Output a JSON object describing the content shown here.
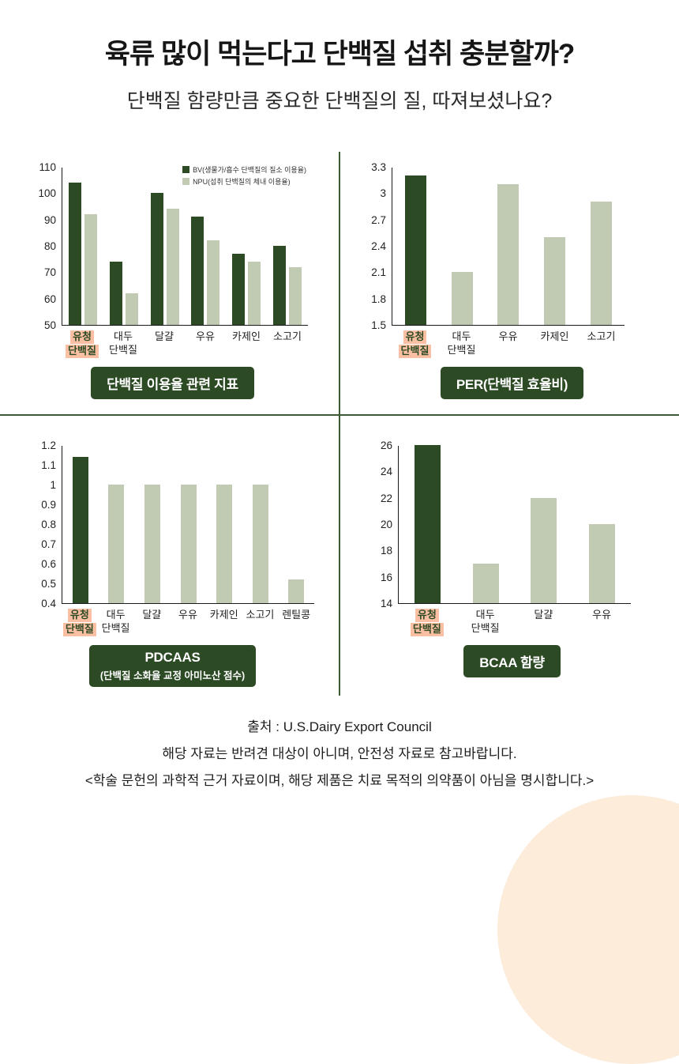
{
  "page": {
    "title": "육류 많이 먹는다고 단백질 섭취 충분할까?",
    "subtitle": "단백질 함량만큼 중요한 단백질의 질, 따져보셨나요?"
  },
  "colors": {
    "dark_green": "#2c4a24",
    "light_green": "#c1cbb3",
    "highlight_pink": "#fbbfa3",
    "divider_green": "#3d5b33",
    "corner_cream": "#fcecd9"
  },
  "footer": {
    "lines": [
      "출처 : U.S.Dairy Export Council",
      "해당 자료는 반려견 대상이 아니며, 안전성 자료로 참고바랍니다.",
      "<학술 문헌의 과학적 근거 자료이며, 해당 제품은 치료 목적의 의약품이 아님을 명시합니다.>"
    ]
  },
  "chart_data": [
    {
      "type": "bar",
      "title": "단백질 이용율 관련 지표",
      "ylim": [
        50,
        110
      ],
      "yticks": [
        50,
        60,
        70,
        80,
        90,
        100,
        110
      ],
      "legend_position": "top-right",
      "grid": false,
      "categories": [
        {
          "label": "유청 단백질",
          "lines": [
            "유청",
            "단백질"
          ],
          "highlight": true
        },
        {
          "label": "대두 단백질",
          "lines": [
            "대두",
            "단백질"
          ],
          "highlight": false
        },
        {
          "label": "달걀",
          "lines": [
            "달걀"
          ],
          "highlight": false
        },
        {
          "label": "우유",
          "lines": [
            "우유"
          ],
          "highlight": false
        },
        {
          "label": "카제인",
          "lines": [
            "카제인"
          ],
          "highlight": false
        },
        {
          "label": "소고기",
          "lines": [
            "소고기"
          ],
          "highlight": false
        }
      ],
      "series": [
        {
          "name": "BV(생물가/흡수 단백질의 질소 이용율)",
          "color": "dark",
          "values": [
            104,
            74,
            100,
            91,
            77,
            80
          ]
        },
        {
          "name": "NPU(섭취 단백질의 체내 이용율)",
          "color": "light",
          "values": [
            92,
            62,
            94,
            82,
            74,
            72
          ]
        }
      ]
    },
    {
      "type": "bar",
      "title": "PER(단백질 효율비)",
      "ylim": [
        1.5,
        3.3
      ],
      "yticks": [
        1.5,
        1.8,
        2.1,
        2.4,
        2.7,
        3,
        3.3
      ],
      "grid": false,
      "categories": [
        {
          "label": "유청 단백질",
          "lines": [
            "유청",
            "단백질"
          ],
          "highlight": true
        },
        {
          "label": "대두 단백질",
          "lines": [
            "대두",
            "단백질"
          ],
          "highlight": false
        },
        {
          "label": "우유",
          "lines": [
            "우유"
          ],
          "highlight": false
        },
        {
          "label": "카제인",
          "lines": [
            "카제인"
          ],
          "highlight": false
        },
        {
          "label": "소고기",
          "lines": [
            "소고기"
          ],
          "highlight": false
        }
      ],
      "values": [
        3.2,
        2.1,
        3.1,
        2.5,
        2.9
      ]
    },
    {
      "type": "bar",
      "title": "PDCAAS",
      "subtitle": "(단백질 소화율 교정 아미노산 점수)",
      "ylim": [
        0.4,
        1.2
      ],
      "yticks": [
        0.4,
        0.5,
        0.6,
        0.7,
        0.8,
        0.9,
        1,
        1.1,
        1.2
      ],
      "grid": false,
      "categories": [
        {
          "label": "유청 단백질",
          "lines": [
            "유청",
            "단백질"
          ],
          "highlight": true
        },
        {
          "label": "대두 단백질",
          "lines": [
            "대두",
            "단백질"
          ],
          "highlight": false
        },
        {
          "label": "달걀",
          "lines": [
            "달걀"
          ],
          "highlight": false
        },
        {
          "label": "우유",
          "lines": [
            "우유"
          ],
          "highlight": false
        },
        {
          "label": "카제인",
          "lines": [
            "카제인"
          ],
          "highlight": false
        },
        {
          "label": "소고기",
          "lines": [
            "소고기"
          ],
          "highlight": false
        },
        {
          "label": "렌틸콩",
          "lines": [
            "렌틸콩"
          ],
          "highlight": false
        }
      ],
      "values": [
        1.14,
        1,
        1,
        1,
        1,
        1,
        0.52
      ]
    },
    {
      "type": "bar",
      "title": "BCAA 함량",
      "ylim": [
        14,
        26
      ],
      "yticks": [
        14,
        16,
        18,
        20,
        22,
        24,
        26
      ],
      "grid": false,
      "categories": [
        {
          "label": "유청 단백질",
          "lines": [
            "유청",
            "단백질"
          ],
          "highlight": true
        },
        {
          "label": "대두 단백질",
          "lines": [
            "대두",
            "단백질"
          ],
          "highlight": false
        },
        {
          "label": "달걀",
          "lines": [
            "달걀"
          ],
          "highlight": false
        },
        {
          "label": "우유",
          "lines": [
            "우유"
          ],
          "highlight": false
        }
      ],
      "values": [
        26,
        17,
        22,
        20
      ]
    }
  ]
}
